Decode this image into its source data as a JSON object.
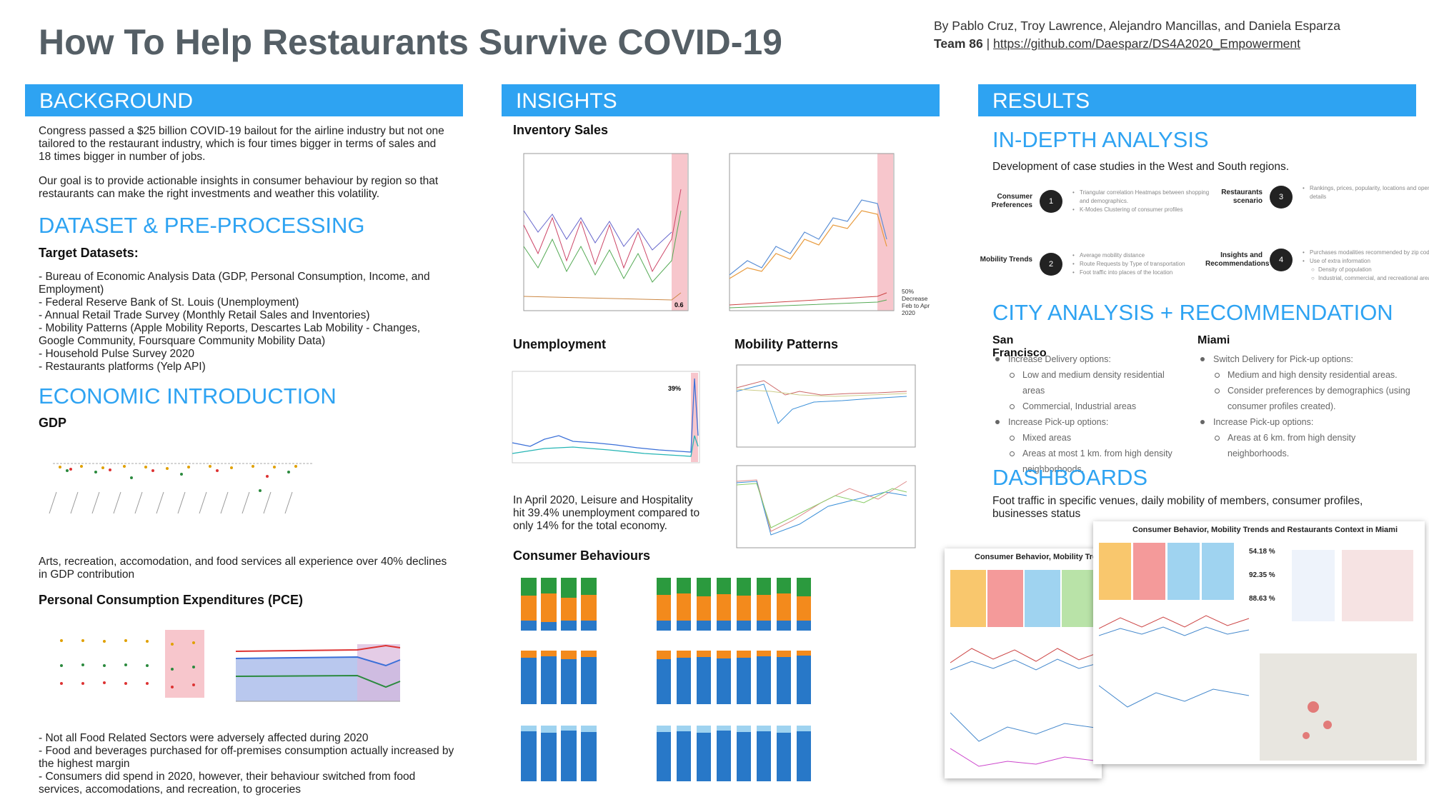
{
  "header": {
    "title": "How To Help Restaurants Survive COVID-19",
    "authors": "By Pablo Cruz, Troy Lawrence, Alejandro Mancillas, and Daniela Esparza",
    "team": "Team 86",
    "separator": "|",
    "link": "https://github.com/Daesparz/DS4A2020_Empowerment"
  },
  "background": {
    "heading": "BACKGROUND",
    "paragraphs": [
      "Congress passed a $25 billion COVID-19 bailout for the airline industry but not one tailored to the restaurant industry, which is four times bigger in terms of sales and 18 times bigger in number of jobs.",
      "Our goal is to provide actionable insights in consumer behaviour by region so that restaurants can make the right investments and weather this volatility."
    ]
  },
  "dataset": {
    "heading": "DATASET & PRE-PROCESSING",
    "subheading": "Target Datasets:",
    "items": [
      "- Bureau of Economic Analysis Data (GDP, Personal Consumption, Income, and Employment)",
      "- Federal Reserve Bank of St. Louis (Unemployment)",
      "- Annual Retail Trade Survey (Monthly Retail Sales and Inventories)",
      "- Mobility Patterns (Apple Mobility Reports, Descartes Lab Mobility - Changes, Google Community, Foursquare Community Mobility Data)",
      "- Household Pulse Survey 2020",
      "- Restaurants platforms (Yelp API)"
    ]
  },
  "economic": {
    "heading": "ECONOMIC INTRODUCTION",
    "gdp_label": "GDP",
    "gdp_caption": "Arts, recreation, accomodation, and food services all experience over 40% declines in GDP contribution",
    "pce_label": "Personal Consumption Expenditures (PCE)",
    "pce_notes": [
      "- Not all Food Related Sectors were adversely affected during 2020",
      "- Food and beverages purchased for off-premises consumption actually increased by the highest margin",
      "- Consumers did spend in 2020, however, their behaviour switched from food services, accomodations, and recreation, to groceries"
    ]
  },
  "insights": {
    "heading": "INSIGHTS",
    "inventory_label": "Inventory Sales",
    "inventory_note": "0.6",
    "sales_note": "50% Decrease Feb to Apr 2020",
    "unemployment_label": "Unemployment",
    "unemployment_note": "39%",
    "unemployment_caption": "In April 2020, Leisure and Hospitality hit 39.4% unemployment compared to only 14% for the total economy.",
    "mobility_label": "Mobility Patterns",
    "consumer_label": "Consumer Behaviours"
  },
  "results": {
    "heading": "RESULTS",
    "indepth": {
      "heading": "IN-DEPTH ANALYSIS",
      "description": "Development of case studies in the West and South regions.",
      "steps": [
        {
          "number": "1",
          "label": "Consumer Preferences",
          "bullets": [
            {
              "text": "Triangular correlation Heatmaps between shopping and demographics.",
              "sub": []
            },
            {
              "text": "K-Modes Clustering of consumer profiles",
              "sub": []
            }
          ]
        },
        {
          "number": "2",
          "label": "Mobility Trends",
          "bullets": [
            {
              "text": "Average mobility distance",
              "sub": []
            },
            {
              "text": "Route Requests by Type of transportation",
              "sub": []
            },
            {
              "text": "Foot traffic into places of the location",
              "sub": []
            }
          ]
        },
        {
          "number": "3",
          "label": "Restaurants scenario",
          "bullets": [
            {
              "text": "Rankings, prices, popularity, locations and operation details",
              "sub": []
            }
          ]
        },
        {
          "number": "4",
          "label": "Insights and Recommendations",
          "bullets": [
            {
              "text": "Purchases modalities recommended by zip code",
              "sub": []
            },
            {
              "text": "Use of extra information",
              "sub": [
                "Density of population",
                "Industrial, commercial, and recreational areas"
              ]
            }
          ]
        }
      ]
    },
    "city": {
      "heading": "CITY ANALYSIS + RECOMMENDATION",
      "cities": [
        {
          "name": "San Francisco",
          "items": [
            {
              "text": "Increase Delivery options:",
              "sub": [
                "Low and medium density residential areas",
                "Commercial, Industrial areas"
              ]
            },
            {
              "text": "Increase Pick-up options:",
              "sub": [
                "Mixed areas",
                "Areas at most 1 km. from high density neighborhoods."
              ]
            }
          ]
        },
        {
          "name": "Miami",
          "items": [
            {
              "text": "Switch Delivery for Pick-up options:",
              "sub": [
                "Medium and high density residential areas.",
                "Consider preferences by demographics (using consumer profiles created)."
              ]
            },
            {
              "text": "Increase Pick-up options:",
              "sub": [
                "Areas at 6 km. from high density neighborhoods."
              ]
            }
          ]
        }
      ]
    },
    "dashboards": {
      "heading": "DASHBOARDS",
      "description": "Foot traffic in specific venues, daily mobility of members, consumer profiles, businesses status",
      "screen_left_title": "Consumer Behavior, Mobility Tren",
      "screen_right_title": "Consumer Behavior, Mobility Trends and Restaurants Context in Miami",
      "kpis": [
        "54.18 %",
        "92.35 %",
        "88.63 %"
      ]
    }
  }
}
